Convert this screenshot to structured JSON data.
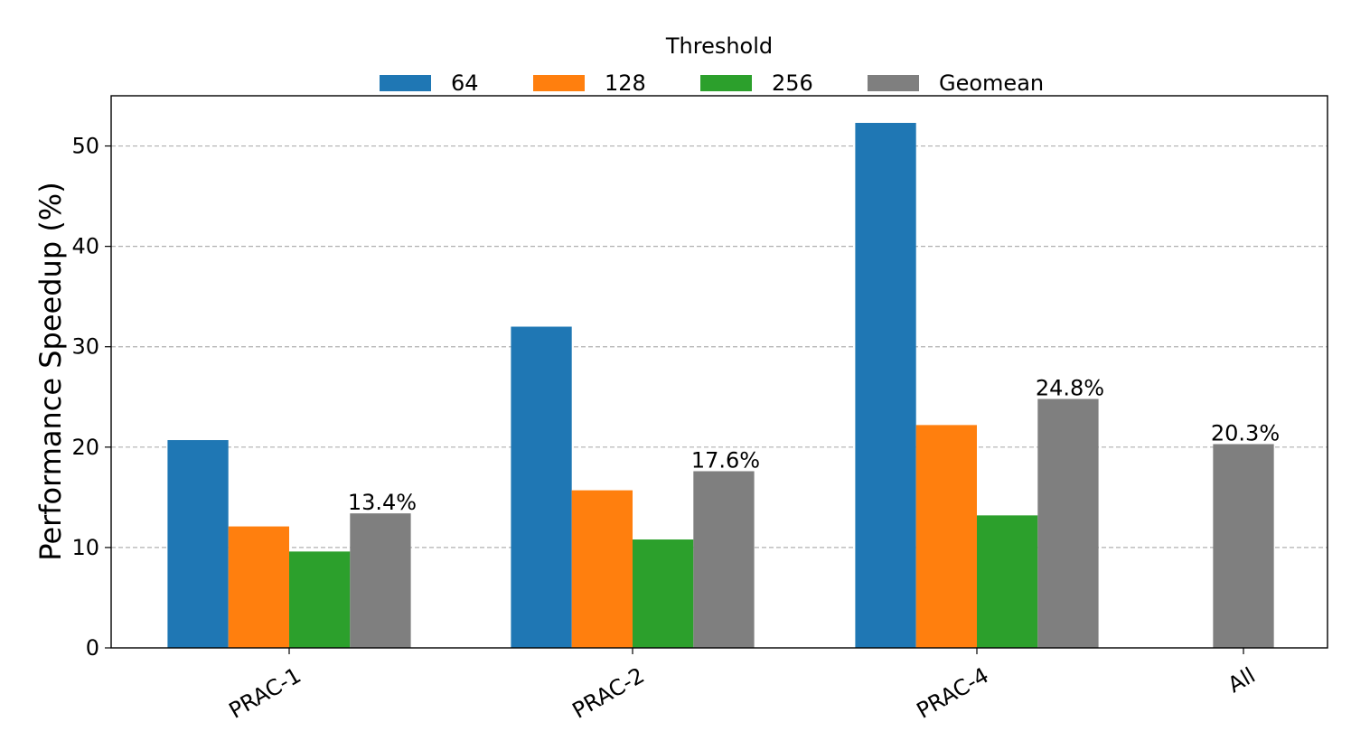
{
  "chart_data": {
    "type": "bar",
    "title": "",
    "xlabel": "",
    "ylabel": "Performance Speedup (%)",
    "ylim": [
      0,
      55
    ],
    "yticks": [
      0,
      10,
      20,
      30,
      40,
      50
    ],
    "grid": "horizontal-dashed",
    "categories": [
      "PRAC-1",
      "PRAC-2",
      "PRAC-4",
      "All"
    ],
    "legend": {
      "title": "Threshold",
      "placement": "top-center",
      "entries": [
        "64",
        "128",
        "256",
        "Geomean"
      ]
    },
    "series": [
      {
        "name": "64",
        "color": "#1f77b4",
        "values": [
          20.7,
          32.0,
          52.3,
          null
        ]
      },
      {
        "name": "128",
        "color": "#ff7f0e",
        "values": [
          12.1,
          15.7,
          22.2,
          null
        ]
      },
      {
        "name": "256",
        "color": "#2ca02c",
        "values": [
          9.6,
          10.8,
          13.2,
          null
        ]
      },
      {
        "name": "Geomean",
        "color": "#7f7f7f",
        "values": [
          13.4,
          17.6,
          24.8,
          20.3
        ]
      }
    ],
    "annotations": [
      "13.4%",
      "17.6%",
      "24.8%",
      "20.3%"
    ]
  }
}
